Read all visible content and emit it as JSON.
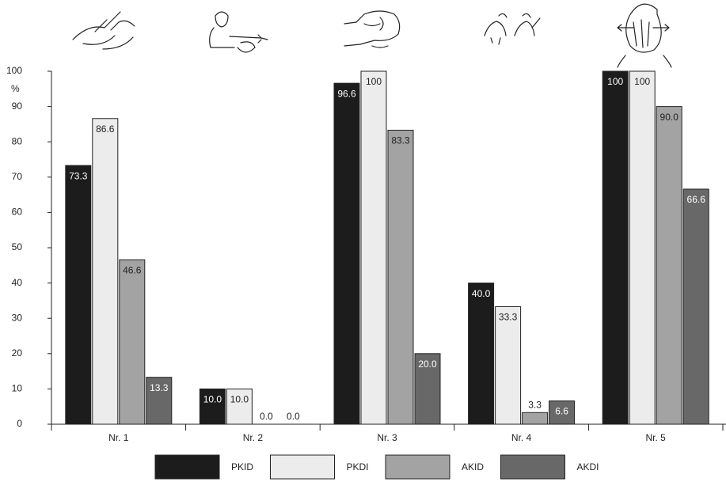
{
  "chart_data": {
    "type": "bar",
    "ylabel": "%",
    "categories": [
      "Nr. 1",
      "Nr. 2",
      "Nr. 3",
      "Nr. 4",
      "Nr. 5"
    ],
    "series": [
      {
        "name": "PKID",
        "color": "#1c1c1c",
        "values": [
          73.3,
          10,
          96.6,
          40,
          100
        ],
        "value_labels": [
          "73.3",
          "10.0",
          "96.6",
          "40.0",
          "100"
        ]
      },
      {
        "name": "PKDI",
        "color": "#ececec",
        "values": [
          86.6,
          10,
          100,
          33.3,
          100
        ],
        "value_labels": [
          "86.6",
          "10.0",
          "100",
          "33.3",
          "100"
        ]
      },
      {
        "name": "AKID",
        "color": "#a3a3a3",
        "values": [
          46.6,
          0,
          83.3,
          3.3,
          90
        ],
        "value_labels": [
          "46.6",
          "0.0",
          "83.3",
          "3.3",
          "90.0"
        ]
      },
      {
        "name": "AKDI",
        "color": "#686868",
        "values": [
          13.3,
          0,
          20,
          6.6,
          66.6
        ],
        "value_labels": [
          "13.3",
          "0.0",
          "20.0",
          "6.6",
          "66.6"
        ]
      }
    ],
    "ylim": [
      0,
      100
    ],
    "yticks": [
      0,
      10,
      20,
      30,
      40,
      50,
      60,
      70,
      80,
      90,
      100
    ]
  }
}
